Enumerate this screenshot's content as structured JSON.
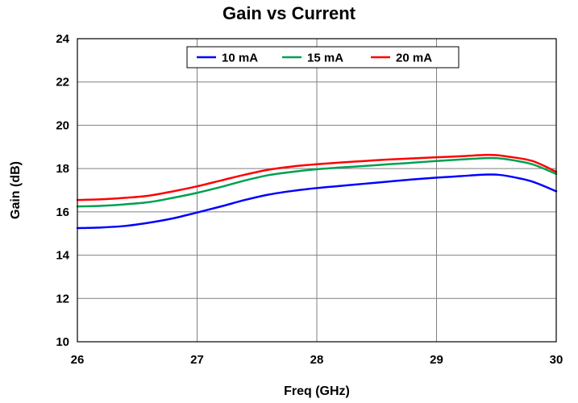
{
  "chart_data": {
    "type": "line",
    "title": "Gain vs Current",
    "xlabel": "Freq (GHz)",
    "ylabel": "Gain (dB)",
    "xlim": [
      26,
      30
    ],
    "ylim": [
      10,
      24
    ],
    "xticks": [
      "26",
      "27",
      "28",
      "29",
      "30"
    ],
    "yticks": [
      "10",
      "12",
      "14",
      "16",
      "18",
      "20",
      "22",
      "24"
    ],
    "grid": true,
    "legend_position": "top-center",
    "series": [
      {
        "name": "10 mA",
        "color": "#0000ff",
        "x": [
          26.0,
          26.2,
          26.4,
          26.6,
          26.8,
          27.0,
          27.2,
          27.4,
          27.6,
          27.8,
          28.0,
          28.2,
          28.4,
          28.6,
          28.8,
          29.0,
          29.2,
          29.4,
          29.5,
          29.6,
          29.8,
          30.0
        ],
        "y": [
          15.25,
          15.28,
          15.35,
          15.5,
          15.7,
          15.97,
          16.25,
          16.55,
          16.8,
          16.97,
          17.1,
          17.2,
          17.3,
          17.4,
          17.5,
          17.58,
          17.65,
          17.72,
          17.72,
          17.65,
          17.4,
          16.95
        ]
      },
      {
        "name": "15 mA",
        "color": "#00a050",
        "x": [
          26.0,
          26.2,
          26.4,
          26.6,
          26.8,
          27.0,
          27.2,
          27.4,
          27.6,
          27.8,
          28.0,
          28.2,
          28.4,
          28.6,
          28.8,
          29.0,
          29.2,
          29.4,
          29.5,
          29.6,
          29.8,
          30.0
        ],
        "y": [
          16.25,
          16.28,
          16.35,
          16.45,
          16.65,
          16.88,
          17.15,
          17.45,
          17.7,
          17.85,
          17.97,
          18.05,
          18.12,
          18.2,
          18.27,
          18.35,
          18.42,
          18.48,
          18.48,
          18.42,
          18.2,
          17.75
        ]
      },
      {
        "name": "20 mA",
        "color": "#ff0000",
        "x": [
          26.0,
          26.2,
          26.4,
          26.6,
          26.8,
          27.0,
          27.2,
          27.4,
          27.6,
          27.8,
          28.0,
          28.2,
          28.4,
          28.6,
          28.8,
          29.0,
          29.2,
          29.4,
          29.5,
          29.6,
          29.8,
          30.0
        ],
        "y": [
          16.55,
          16.58,
          16.65,
          16.75,
          16.95,
          17.18,
          17.45,
          17.72,
          17.95,
          18.1,
          18.2,
          18.28,
          18.35,
          18.42,
          18.47,
          18.52,
          18.57,
          18.63,
          18.62,
          18.55,
          18.35,
          17.85
        ]
      }
    ]
  }
}
